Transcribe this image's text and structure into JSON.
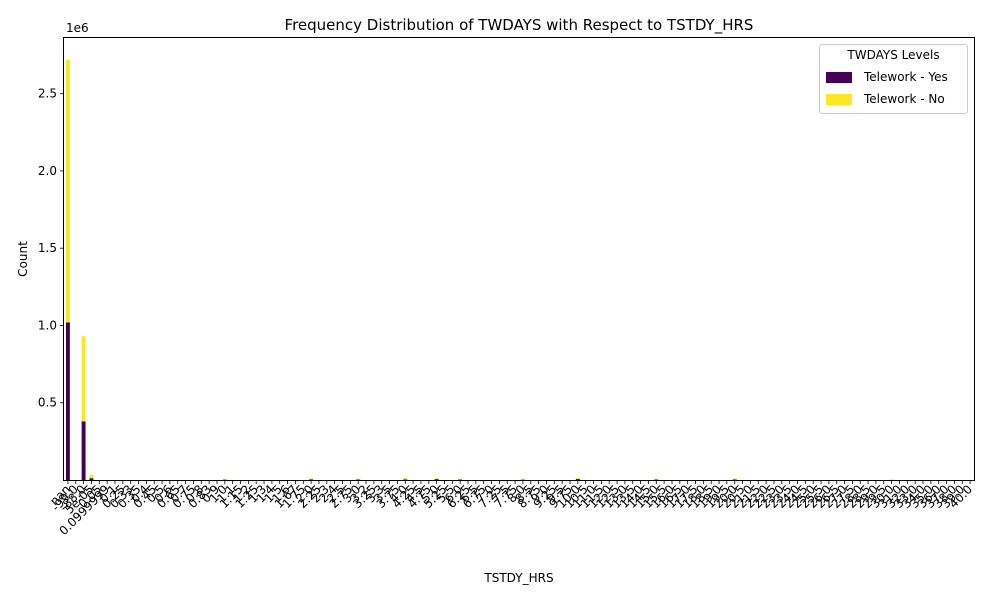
{
  "chart_data": {
    "type": "bar",
    "stacked": true,
    "title": "Frequency Distribution of TWDAYS with Respect to TSTDY_HRS",
    "xlabel": "TSTDY_HRS",
    "ylabel": "Count",
    "y_multiplier_label": "1e6",
    "ylim": [
      0,
      2.86
    ],
    "yticks": [
      0.5,
      1.0,
      1.5,
      2.0,
      2.5
    ],
    "ytick_labels": [
      "0.5",
      "1.0",
      "1.5",
      "2.0",
      "2.5"
    ],
    "grid": false,
    "legend_title": "TWDAYS Levels",
    "legend_position": "top-right",
    "categories": [
      "nan",
      "-99.0",
      "-88.0",
      "5e-05",
      "0.05",
      "0.0999999",
      "0.1",
      "0.25",
      "0.33",
      "0.35",
      "0.4",
      "0.45",
      "0.5",
      "0.6",
      "0.65",
      "0.7",
      "0.75",
      "0.8",
      "0.83",
      "0.9",
      "1.0",
      "1.1",
      "1.15",
      "1.2",
      "1.25",
      "1.3",
      "1.4",
      "1.5",
      "1.6",
      "1.67",
      "1.75",
      "2.0",
      "2.25",
      "2.3",
      "2.4",
      "2.5",
      "2.75",
      "3.0",
      "3.2",
      "3.25",
      "3.3",
      "3.5",
      "3.75",
      "4.0",
      "4.25",
      "4.5",
      "4.75",
      "5.0",
      "5.25",
      "5.5",
      "6.0",
      "6.25",
      "6.5",
      "6.75",
      "7.0",
      "7.25",
      "7.5",
      "7.75",
      "8.0",
      "8.5",
      "8.75",
      "9.0",
      "9.25",
      "9.5",
      "9.75",
      "10.0",
      "10.5",
      "11.0",
      "11.5",
      "12.0",
      "12.5",
      "13.0",
      "13.5",
      "14.0",
      "14.5",
      "15.0",
      "15.5",
      "16.0",
      "16.5",
      "17.0",
      "17.5",
      "18.0",
      "18.5",
      "19.0",
      "19.5",
      "20.0",
      "20.5",
      "21.0",
      "21.5",
      "22.0",
      "22.5",
      "23.0",
      "23.5",
      "24.0",
      "24.5",
      "25.0",
      "25.5",
      "26.0",
      "26.5",
      "27.0",
      "27.5",
      "28.0",
      "28.5",
      "29.0",
      "29.5",
      "30.0",
      "31.0",
      "32.0",
      "33.0",
      "34.0",
      "35.0",
      "36.0",
      "37.0",
      "38.0",
      "39.0",
      "40.0"
    ],
    "series": [
      {
        "name": "Telework - Yes",
        "color": "#440154",
        "values": [
          1.02,
          0,
          0.38,
          0.012,
          0,
          0,
          0,
          0,
          0,
          0,
          0,
          0,
          0,
          0,
          0,
          0,
          0,
          0,
          0,
          0,
          0.004,
          0,
          0,
          0,
          0,
          0,
          0,
          0,
          0,
          0,
          0,
          0.006,
          0,
          0,
          0,
          0,
          0,
          0.005,
          0,
          0,
          0,
          0,
          0,
          0.004,
          0,
          0,
          0,
          0.008,
          0,
          0,
          0.004,
          0,
          0,
          0,
          0,
          0,
          0,
          0,
          0.003,
          0,
          0,
          0,
          0,
          0,
          0,
          0.008,
          0,
          0,
          0,
          0,
          0,
          0,
          0,
          0,
          0,
          0.005,
          0,
          0,
          0,
          0,
          0,
          0,
          0,
          0,
          0,
          0.004,
          0,
          0,
          0,
          0,
          0,
          0,
          0,
          0,
          0,
          0,
          0,
          0,
          0,
          0,
          0,
          0,
          0,
          0,
          0,
          0.002,
          0,
          0,
          0,
          0,
          0,
          0,
          0,
          0,
          0,
          0
        ]
      },
      {
        "name": "Telework - No",
        "color": "#fde725",
        "values": [
          1.7,
          0,
          0.55,
          0.022,
          0,
          0,
          0,
          0,
          0,
          0,
          0,
          0,
          0,
          0,
          0,
          0,
          0,
          0,
          0,
          0,
          0.004,
          0,
          0,
          0,
          0,
          0,
          0,
          0,
          0,
          0,
          0,
          0.004,
          0,
          0,
          0,
          0,
          0,
          0.004,
          0,
          0,
          0,
          0,
          0,
          0.008,
          0,
          0,
          0,
          0.004,
          0,
          0,
          0.005,
          0,
          0,
          0,
          0,
          0,
          0,
          0,
          0.005,
          0,
          0,
          0,
          0,
          0,
          0,
          0.005,
          0,
          0,
          0,
          0,
          0,
          0,
          0,
          0,
          0,
          0.004,
          0,
          0,
          0,
          0,
          0,
          0,
          0,
          0,
          0,
          0.006,
          0,
          0,
          0,
          0,
          0,
          0,
          0,
          0,
          0,
          0,
          0,
          0,
          0,
          0,
          0,
          0,
          0,
          0,
          0,
          0.002,
          0,
          0,
          0,
          0,
          0,
          0,
          0,
          0,
          0,
          0
        ]
      }
    ]
  }
}
